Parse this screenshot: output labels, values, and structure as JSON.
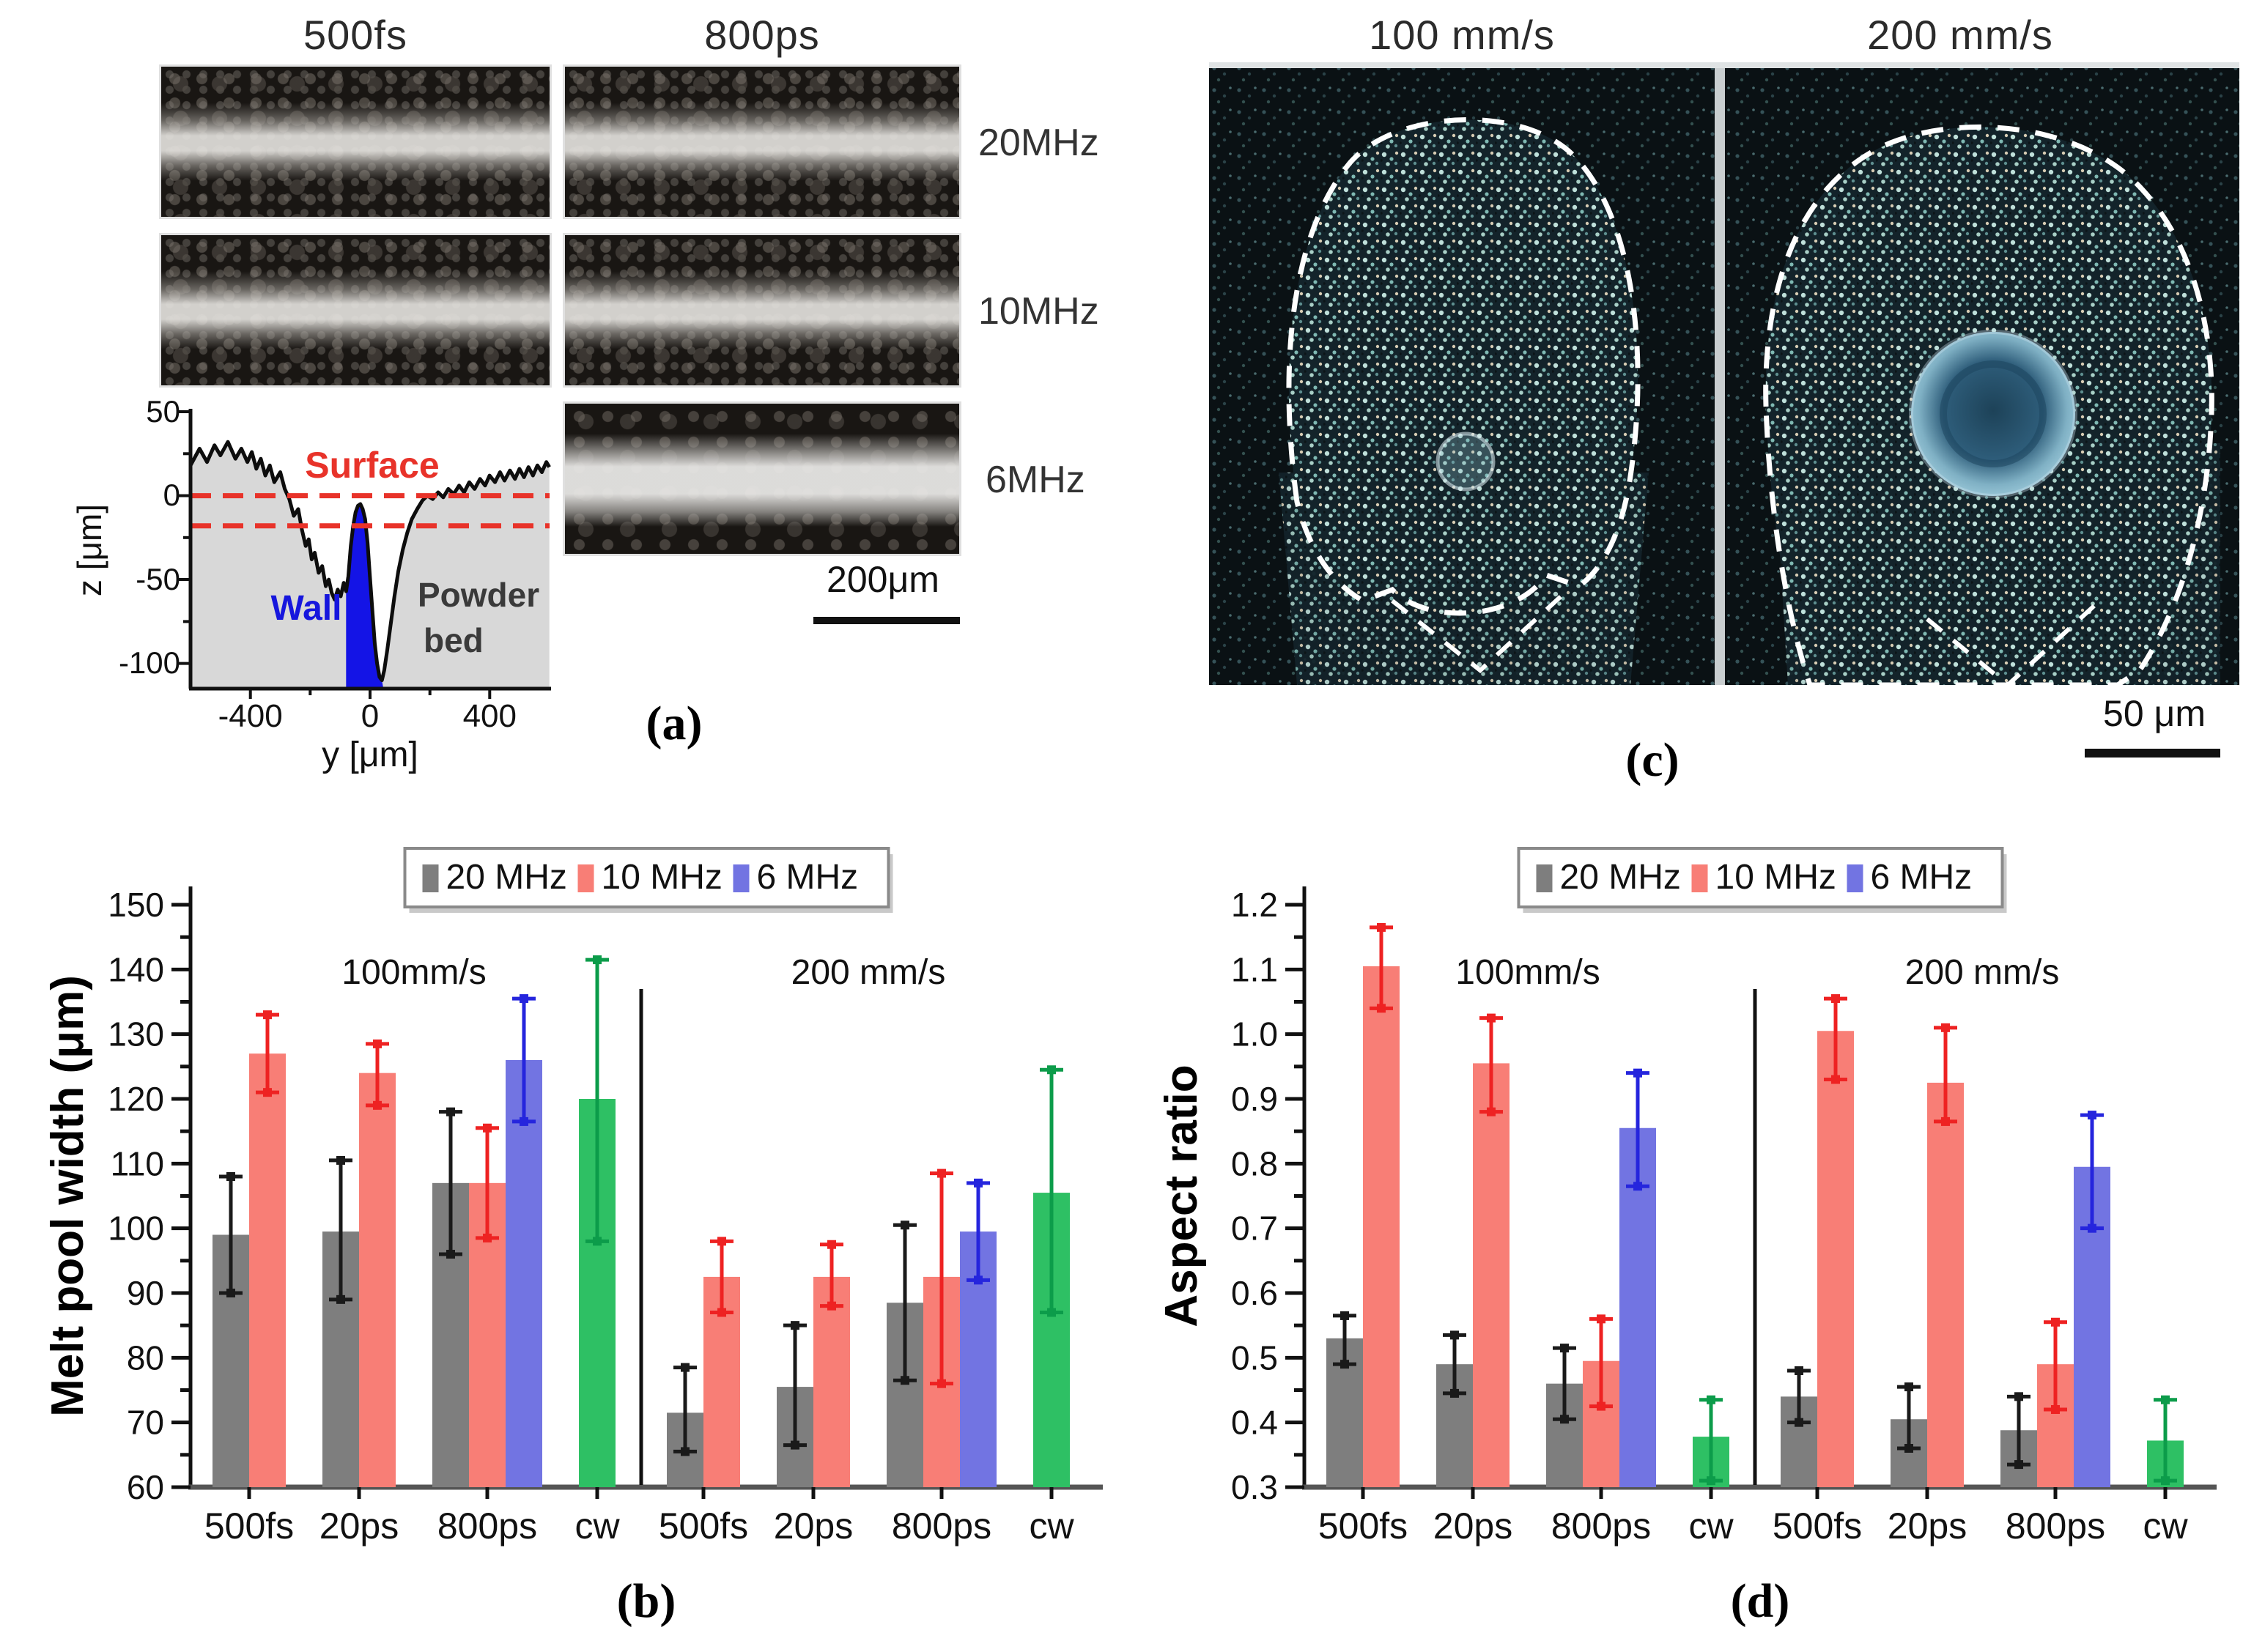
{
  "figure": {
    "panel_a": {
      "col_labels": [
        "500fs",
        "800ps"
      ],
      "row_labels": [
        "20MHz",
        "10MHz",
        "6MHz"
      ],
      "scale_bar": "200μm",
      "label": "(a)",
      "profile": {
        "ylabel": "z [μm]",
        "xlabel": "y [μm]",
        "yticks": [
          "50",
          "0",
          "-50",
          "-100"
        ],
        "xticks": [
          "-400",
          "0",
          "400"
        ],
        "surface_label": "Surface",
        "wall_label": "Wall",
        "powder_label_line1": "Powder",
        "powder_label_line2": "bed",
        "surface_color": "#e8332a",
        "wall_color": "#1616dd"
      }
    },
    "panel_c": {
      "col_labels": [
        "100 mm/s",
        "200 mm/s"
      ],
      "scale_bar": "50 μm",
      "label": "(c)"
    }
  },
  "series_colors": {
    "20 MHz": {
      "fill": "#7e7e7e",
      "error": "#1a1a1a"
    },
    "10 MHz": {
      "fill": "#f87e76",
      "error": "#ee2222"
    },
    "6 MHz": {
      "fill": "#7274e2",
      "error": "#2525dd"
    },
    "cw": {
      "fill": "#2ec064",
      "error": "#0c9c4a"
    }
  },
  "chart_data": [
    {
      "id": "b",
      "type": "bar",
      "panel_label": "(b)",
      "ylabel": "Melt pool width (μm)",
      "ylim": [
        60,
        150
      ],
      "ytick_major": 10,
      "ytick_minor": 5,
      "ydecimals": 0,
      "grid": false,
      "legend_position": "top-center",
      "legend": [
        {
          "label": "20 MHz",
          "series": "20 MHz"
        },
        {
          "label": "10 MHz",
          "series": "10 MHz"
        },
        {
          "label": "6 MHz",
          "series": "6 MHz"
        }
      ],
      "groups": [
        {
          "label": "100mm/s",
          "categories": [
            {
              "label": "500fs",
              "bars": [
                {
                  "series": "20 MHz",
                  "value": 99,
                  "err_lo": 90,
                  "err_hi": 108
                },
                {
                  "series": "10 MHz",
                  "value": 127,
                  "err_lo": 121,
                  "err_hi": 133
                }
              ]
            },
            {
              "label": "20ps",
              "bars": [
                {
                  "series": "20 MHz",
                  "value": 99.5,
                  "err_lo": 89,
                  "err_hi": 110.5
                },
                {
                  "series": "10 MHz",
                  "value": 124,
                  "err_lo": 119,
                  "err_hi": 128.5
                }
              ]
            },
            {
              "label": "800ps",
              "bars": [
                {
                  "series": "20 MHz",
                  "value": 107,
                  "err_lo": 96,
                  "err_hi": 118
                },
                {
                  "series": "10 MHz",
                  "value": 107,
                  "err_lo": 98.5,
                  "err_hi": 115.5
                },
                {
                  "series": "6 MHz",
                  "value": 126,
                  "err_lo": 116.5,
                  "err_hi": 135.5
                }
              ]
            },
            {
              "label": "cw",
              "bars": [
                {
                  "series": "cw",
                  "value": 120,
                  "err_lo": 98,
                  "err_hi": 141.5
                }
              ]
            }
          ]
        },
        {
          "label": "200 mm/s",
          "categories": [
            {
              "label": "500fs",
              "bars": [
                {
                  "series": "20 MHz",
                  "value": 71.5,
                  "err_lo": 65.5,
                  "err_hi": 78.5
                },
                {
                  "series": "10 MHz",
                  "value": 92.5,
                  "err_lo": 87,
                  "err_hi": 98
                }
              ]
            },
            {
              "label": "20ps",
              "bars": [
                {
                  "series": "20 MHz",
                  "value": 75.5,
                  "err_lo": 66.5,
                  "err_hi": 85
                },
                {
                  "series": "10 MHz",
                  "value": 92.5,
                  "err_lo": 88,
                  "err_hi": 97.5
                }
              ]
            },
            {
              "label": "800ps",
              "bars": [
                {
                  "series": "20 MHz",
                  "value": 88.5,
                  "err_lo": 76.5,
                  "err_hi": 100.5
                },
                {
                  "series": "10 MHz",
                  "value": 92.5,
                  "err_lo": 76,
                  "err_hi": 108.5
                },
                {
                  "series": "6 MHz",
                  "value": 99.5,
                  "err_lo": 92,
                  "err_hi": 107
                }
              ]
            },
            {
              "label": "cw",
              "bars": [
                {
                  "series": "cw",
                  "value": 105.5,
                  "err_lo": 87,
                  "err_hi": 124.5
                }
              ]
            }
          ]
        }
      ]
    },
    {
      "id": "d",
      "type": "bar",
      "panel_label": "(d)",
      "ylabel": "Aspect ratio",
      "ylim": [
        0.3,
        1.2
      ],
      "ytick_major": 0.1,
      "ytick_minor": 0.05,
      "ydecimals": 1,
      "grid": false,
      "legend_position": "top-center",
      "legend": [
        {
          "label": "20 MHz",
          "series": "20 MHz"
        },
        {
          "label": "10 MHz",
          "series": "10 MHz"
        },
        {
          "label": "6 MHz",
          "series": "6 MHz"
        }
      ],
      "groups": [
        {
          "label": "100mm/s",
          "categories": [
            {
              "label": "500fs",
              "bars": [
                {
                  "series": "20 MHz",
                  "value": 0.53,
                  "err_lo": 0.49,
                  "err_hi": 0.565
                },
                {
                  "series": "10 MHz",
                  "value": 1.105,
                  "err_lo": 1.04,
                  "err_hi": 1.165
                }
              ]
            },
            {
              "label": "20ps",
              "bars": [
                {
                  "series": "20 MHz",
                  "value": 0.49,
                  "err_lo": 0.445,
                  "err_hi": 0.535
                },
                {
                  "series": "10 MHz",
                  "value": 0.955,
                  "err_lo": 0.88,
                  "err_hi": 1.025
                }
              ]
            },
            {
              "label": "800ps",
              "bars": [
                {
                  "series": "20 MHz",
                  "value": 0.46,
                  "err_lo": 0.405,
                  "err_hi": 0.515
                },
                {
                  "series": "10 MHz",
                  "value": 0.495,
                  "err_lo": 0.425,
                  "err_hi": 0.56
                },
                {
                  "series": "6 MHz",
                  "value": 0.855,
                  "err_lo": 0.765,
                  "err_hi": 0.94
                }
              ]
            },
            {
              "label": "cw",
              "bars": [
                {
                  "series": "cw",
                  "value": 0.378,
                  "err_lo": 0.31,
                  "err_hi": 0.435
                }
              ]
            }
          ]
        },
        {
          "label": "200 mm/s",
          "categories": [
            {
              "label": "500fs",
              "bars": [
                {
                  "series": "20 MHz",
                  "value": 0.44,
                  "err_lo": 0.4,
                  "err_hi": 0.48
                },
                {
                  "series": "10 MHz",
                  "value": 1.005,
                  "err_lo": 0.93,
                  "err_hi": 1.055
                }
              ]
            },
            {
              "label": "20ps",
              "bars": [
                {
                  "series": "20 MHz",
                  "value": 0.405,
                  "err_lo": 0.36,
                  "err_hi": 0.455
                },
                {
                  "series": "10 MHz",
                  "value": 0.925,
                  "err_lo": 0.865,
                  "err_hi": 1.01
                }
              ]
            },
            {
              "label": "800ps",
              "bars": [
                {
                  "series": "20 MHz",
                  "value": 0.388,
                  "err_lo": 0.335,
                  "err_hi": 0.44
                },
                {
                  "series": "10 MHz",
                  "value": 0.49,
                  "err_lo": 0.42,
                  "err_hi": 0.555
                },
                {
                  "series": "6 MHz",
                  "value": 0.795,
                  "err_lo": 0.7,
                  "err_hi": 0.875
                }
              ]
            },
            {
              "label": "cw",
              "bars": [
                {
                  "series": "cw",
                  "value": 0.372,
                  "err_lo": 0.31,
                  "err_hi": 0.435
                }
              ]
            }
          ]
        }
      ]
    }
  ]
}
